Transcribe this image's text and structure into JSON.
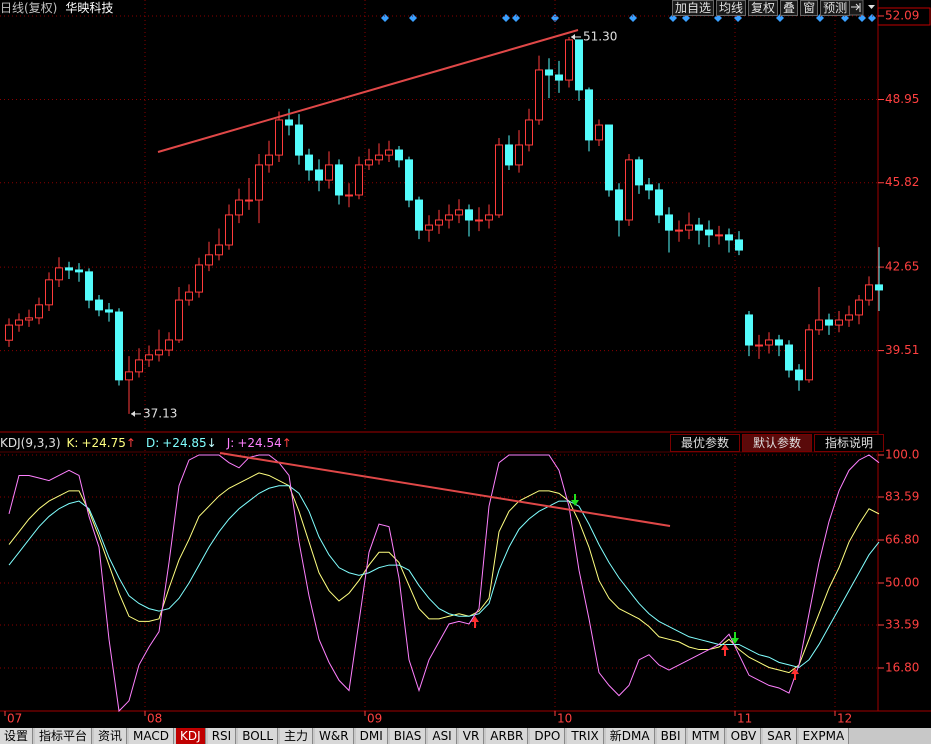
{
  "header": {
    "title": "日线(复权)",
    "stock": "华映科技"
  },
  "toolbar": [
    "加自选",
    "均线",
    "复权",
    "叠",
    "窗",
    "预测"
  ],
  "indicator_buttons": {
    "items": [
      "最优参数",
      "默认参数",
      "指标说明"
    ],
    "active": 1
  },
  "tabs": {
    "items": [
      "设置",
      "指标平台",
      "资讯",
      "MACD",
      "KDJ",
      "RSI",
      "BOLL",
      "主力",
      "W&R",
      "DMI",
      "BIAS",
      "ASI",
      "VR",
      "ARBR",
      "DPO",
      "TRIX",
      "新DMA",
      "BBI",
      "MTM",
      "OBV",
      "SAR",
      "EXPMA"
    ],
    "active": 4
  },
  "chart_data": [
    {
      "type": "candlestick",
      "categories": [
        "07",
        null,
        null,
        null,
        null,
        null,
        null,
        null,
        null,
        null,
        null,
        null,
        null,
        null,
        "08",
        null,
        null,
        null,
        null,
        null,
        null,
        null,
        null,
        null,
        null,
        null,
        null,
        null,
        null,
        null,
        null,
        null,
        null,
        null,
        null,
        null,
        "09",
        null,
        null,
        null,
        null,
        null,
        null,
        null,
        null,
        null,
        null,
        null,
        null,
        null,
        null,
        null,
        null,
        null,
        null,
        "10",
        null,
        null,
        null,
        null,
        null,
        null,
        null,
        null,
        null,
        null,
        null,
        null,
        null,
        null,
        null,
        null,
        null,
        "11",
        null,
        null,
        null,
        null,
        null,
        null,
        null,
        null,
        null,
        "12",
        null,
        null,
        null,
        null
      ],
      "open": [
        39.9,
        40.47,
        40.66,
        40.74,
        41.23,
        42.17,
        42.62,
        42.54,
        42.47,
        41.41,
        41.04,
        40.96,
        38.41,
        38.71,
        39.16,
        39.35,
        39.53,
        39.91,
        41.41,
        41.71,
        42.73,
        43.11,
        43.48,
        44.61,
        45.17,
        45.17,
        46.49,
        46.86,
        48.18,
        47.99,
        46.86,
        46.3,
        45.92,
        46.49,
        45.36,
        45.36,
        46.49,
        46.68,
        46.86,
        47.05,
        46.68,
        45.17,
        44.04,
        44.23,
        44.42,
        44.61,
        44.8,
        44.42,
        44.42,
        44.61,
        47.24,
        46.49,
        47.24,
        48.18,
        50.06,
        49.87,
        49.68,
        51.19,
        49.31,
        47.43,
        47.99,
        45.55,
        44.42,
        46.68,
        45.74,
        45.55,
        44.61,
        44.04,
        44.04,
        44.23,
        44.04,
        43.86,
        43.86,
        43.67,
        40.85,
        39.72,
        39.72,
        39.91,
        39.72,
        38.78,
        38.41,
        40.29,
        40.66,
        40.47,
        40.66,
        40.85,
        41.41,
        41.98
      ],
      "high": [
        40.72,
        40.91,
        41.05,
        41.5,
        42.45,
        43.02,
        42.85,
        42.8,
        42.6,
        41.6,
        41.3,
        41.1,
        39.3,
        39.6,
        39.7,
        40.3,
        40.2,
        41.9,
        42.0,
        43.0,
        43.6,
        44.1,
        45.0,
        45.6,
        46.0,
        46.9,
        47.4,
        48.5,
        48.6,
        48.4,
        47.1,
        46.7,
        47.0,
        46.7,
        45.8,
        46.8,
        47.1,
        47.3,
        47.4,
        47.2,
        46.8,
        45.3,
        44.6,
        44.8,
        45.0,
        45.2,
        45.0,
        44.9,
        45.0,
        47.5,
        47.6,
        47.8,
        48.6,
        50.6,
        50.5,
        50.4,
        51.3,
        51.2,
        49.4,
        48.2,
        48.0,
        45.8,
        46.9,
        46.8,
        46.0,
        45.8,
        44.9,
        44.4,
        44.7,
        44.5,
        44.4,
        44.2,
        44.1,
        44.0,
        41.0,
        40.1,
        40.2,
        40.1,
        39.9,
        39.0,
        40.5,
        41.9,
        40.9,
        41.0,
        41.2,
        41.6,
        42.3,
        43.4
      ],
      "low": [
        39.65,
        40.22,
        40.4,
        40.5,
        41.0,
        41.9,
        42.2,
        42.1,
        41.1,
        40.8,
        40.6,
        38.2,
        37.13,
        38.5,
        38.9,
        39.1,
        39.3,
        39.8,
        41.2,
        41.5,
        42.5,
        42.9,
        43.3,
        44.3,
        44.8,
        44.3,
        46.2,
        46.6,
        47.6,
        46.5,
        45.9,
        45.5,
        45.6,
        45.0,
        44.9,
        45.2,
        46.3,
        46.5,
        46.6,
        46.4,
        44.9,
        43.7,
        43.6,
        43.9,
        44.1,
        44.3,
        43.8,
        44.0,
        44.1,
        44.5,
        46.3,
        46.2,
        47.0,
        48.0,
        49.0,
        49.2,
        49.4,
        48.9,
        47.0,
        47.2,
        45.3,
        43.8,
        44.2,
        45.4,
        45.2,
        44.3,
        43.2,
        43.6,
        43.7,
        43.5,
        43.4,
        43.5,
        43.2,
        43.1,
        39.3,
        39.2,
        39.4,
        39.3,
        38.5,
        38.0,
        38.3,
        40.1,
        40.1,
        40.2,
        40.4,
        40.5,
        41.2,
        41.0
      ],
      "close": [
        40.47,
        40.66,
        40.74,
        41.23,
        42.17,
        42.62,
        42.54,
        42.47,
        41.41,
        41.04,
        40.96,
        38.41,
        38.71,
        39.16,
        39.35,
        39.53,
        39.91,
        41.41,
        41.71,
        42.73,
        43.11,
        43.48,
        44.61,
        45.17,
        45.17,
        46.49,
        46.86,
        48.18,
        47.99,
        46.86,
        46.3,
        45.92,
        46.49,
        45.36,
        45.36,
        46.49,
        46.68,
        46.86,
        47.05,
        46.68,
        45.17,
        44.04,
        44.23,
        44.42,
        44.61,
        44.8,
        44.42,
        44.42,
        44.61,
        47.24,
        46.49,
        47.24,
        48.18,
        50.06,
        49.87,
        49.68,
        51.19,
        49.31,
        47.43,
        47.99,
        45.55,
        44.42,
        46.68,
        45.74,
        45.55,
        44.61,
        44.04,
        44.04,
        44.23,
        44.04,
        43.86,
        43.86,
        43.67,
        43.29,
        39.72,
        39.72,
        39.91,
        39.72,
        38.78,
        38.41,
        40.29,
        40.66,
        40.47,
        40.66,
        40.85,
        41.41,
        41.98,
        41.79
      ],
      "ylim": [
        36.45,
        52.69
      ],
      "yticks": [
        52.09,
        48.95,
        45.82,
        42.65,
        39.51
      ],
      "up_color": "#ff3c3c",
      "down_color": "#54fcfc",
      "axis_color": "#ff4040",
      "annotations": [
        {
          "value": 51.3,
          "label": "51.30"
        },
        {
          "value": 37.13,
          "label": "37.13"
        }
      ]
    },
    {
      "type": "line",
      "title": "KDJ(9,3,3)",
      "ylim": [
        0,
        101.95
      ],
      "yticks": [
        {
          "value": 100,
          "label": "100.0"
        },
        83.59,
        {
          "value": 66.8,
          "label": "66.80"
        },
        {
          "value": 50,
          "label": "50.00"
        },
        33.59,
        {
          "value": 16.8,
          "label": "16.80"
        }
      ],
      "series": [
        {
          "name": "K:",
          "readout": "+24.75",
          "arrow": "↑",
          "arrow_color": "#ff4040",
          "color": "#ffff80",
          "values": [
            65,
            70,
            75,
            79,
            82,
            84,
            86,
            86,
            78,
            68,
            57,
            46,
            37,
            35,
            35,
            36,
            48,
            59,
            67,
            76,
            80,
            84,
            87,
            89,
            91,
            93,
            92,
            90,
            88,
            78,
            66,
            54,
            47,
            43,
            46,
            51,
            57,
            62,
            62,
            58,
            49,
            40,
            36,
            36,
            37,
            38,
            37,
            39,
            44,
            70,
            78,
            82,
            84,
            86,
            86,
            85,
            82,
            74,
            64,
            51,
            44,
            40,
            38,
            36,
            33,
            29,
            28,
            27,
            25,
            24,
            24,
            25,
            28,
            24,
            21,
            19,
            17,
            16,
            15,
            18,
            28,
            38,
            48,
            56,
            66,
            73,
            79,
            77
          ]
        },
        {
          "name": "D:",
          "readout": "+24.85",
          "arrow": "↓",
          "arrow_color": "#c0ffff",
          "color": "#80ffff",
          "values": [
            57,
            62,
            67,
            72,
            76,
            79,
            81,
            82,
            79,
            70,
            60,
            52,
            45,
            42,
            40,
            39,
            40,
            44,
            50,
            57,
            64,
            70,
            75,
            79,
            82,
            85,
            87,
            88,
            88,
            85,
            78,
            68,
            61,
            56,
            54,
            53,
            54,
            56,
            57,
            57,
            55,
            49,
            44,
            40,
            38,
            37,
            37,
            38,
            42,
            55,
            64,
            71,
            75,
            78,
            80,
            82,
            82,
            80,
            73,
            65,
            58,
            52,
            47,
            42,
            38,
            35,
            33,
            31,
            29,
            28,
            27,
            26,
            26,
            26,
            24,
            22,
            21,
            19,
            18,
            17,
            20,
            26,
            33,
            40,
            47,
            54,
            61,
            66
          ]
        },
        {
          "name": "J:",
          "readout": "+24.54",
          "arrow": "↑",
          "arrow_color": "#ff4040",
          "color": "#ff80ff",
          "values": [
            77,
            92,
            92,
            91,
            90,
            92,
            94,
            92,
            76,
            64,
            28,
            0,
            4,
            18,
            25,
            31,
            58,
            88,
            98,
            100,
            100,
            100,
            97,
            95,
            99,
            100,
            100,
            97,
            92,
            66,
            45,
            28,
            19,
            12,
            8,
            35,
            62,
            73,
            72,
            52,
            20,
            8,
            20,
            27,
            34,
            35,
            34,
            40,
            80,
            97,
            100,
            100,
            100,
            100,
            100,
            94,
            80,
            55,
            36,
            15,
            10,
            6,
            10,
            20,
            22,
            18,
            16,
            18,
            20,
            22,
            24,
            26,
            30,
            22,
            14,
            12,
            10,
            9,
            7,
            18,
            38,
            58,
            74,
            86,
            94,
            98,
            100,
            97
          ]
        }
      ]
    }
  ]
}
